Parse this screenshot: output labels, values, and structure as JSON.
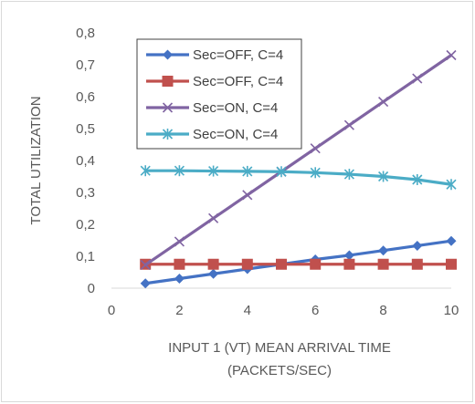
{
  "chart_data": {
    "type": "line",
    "xlabel_lines": [
      "INPUT 1 (VT) MEAN ARRIVAL TIME",
      "(PACKETS/SEC)"
    ],
    "ylabel": "TOTAL UTILIZATION",
    "xlim": [
      0,
      10
    ],
    "ylim": [
      0,
      0.8
    ],
    "x_ticks": [
      "0",
      "2",
      "4",
      "6",
      "8",
      "10"
    ],
    "y_ticks": [
      "0",
      "0,1",
      "0,2",
      "0,3",
      "0,4",
      "0,5",
      "0,6",
      "0,7",
      "0,8"
    ],
    "grid": false,
    "legend_placement": "top-left",
    "x": [
      1,
      2,
      3,
      4,
      5,
      6,
      7,
      8,
      9,
      10
    ],
    "series": [
      {
        "name": "Sec=OFF, C=4",
        "color": "#4472c4",
        "marker": "diamond",
        "values": [
          0.015,
          0.03,
          0.045,
          0.06,
          0.075,
          0.09,
          0.103,
          0.118,
          0.133,
          0.148
        ]
      },
      {
        "name": "Sec=OFF, C=4",
        "color": "#c0504d",
        "marker": "square",
        "values": [
          0.075,
          0.075,
          0.075,
          0.075,
          0.075,
          0.075,
          0.075,
          0.075,
          0.075,
          0.075
        ]
      },
      {
        "name": "Sec=ON, C=4",
        "color": "#8064a2",
        "marker": "x",
        "values": [
          0.073,
          0.146,
          0.219,
          0.292,
          0.365,
          0.438,
          0.511,
          0.584,
          0.657,
          0.73
        ]
      },
      {
        "name": "Sec=ON, C=4",
        "color": "#4bacc6",
        "marker": "star",
        "values": [
          0.368,
          0.368,
          0.367,
          0.366,
          0.365,
          0.362,
          0.357,
          0.35,
          0.34,
          0.325
        ]
      }
    ]
  }
}
